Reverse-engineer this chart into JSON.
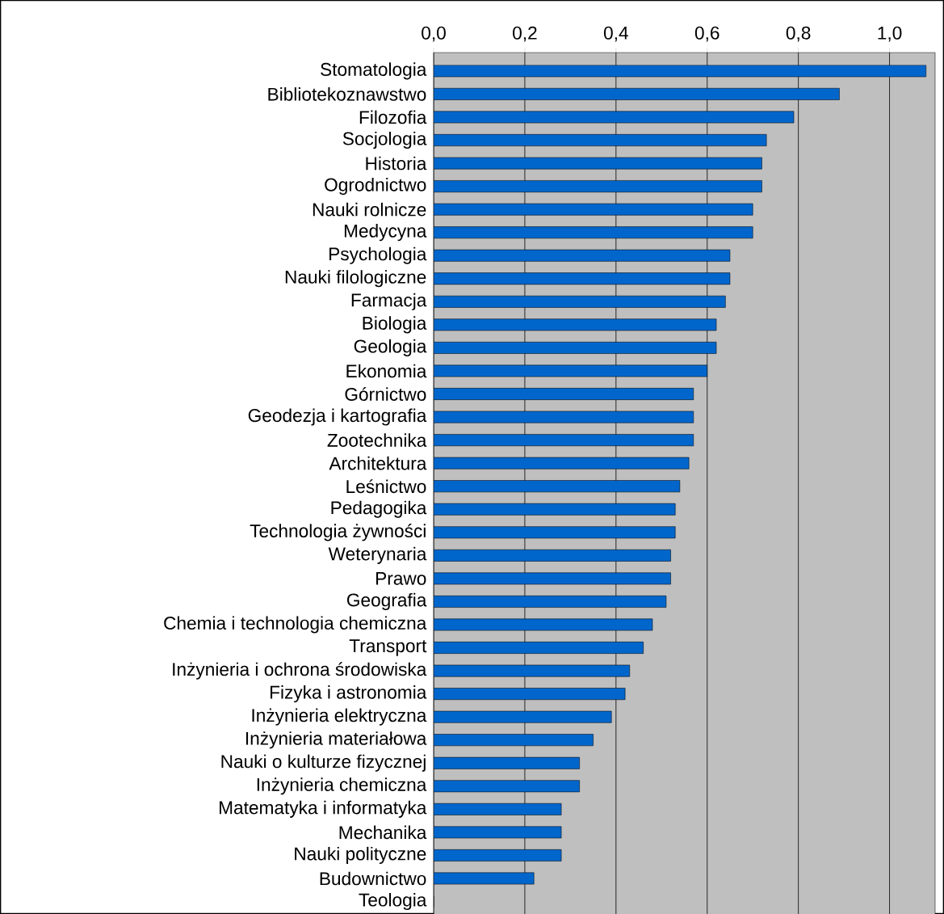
{
  "chart_data": {
    "type": "bar",
    "orientation": "horizontal",
    "categories": [
      "Stomatologia",
      "Bibliotekoznawstwo",
      "Filozofia",
      "Socjologia",
      "Historia",
      "Ogrodnictwo",
      "Nauki rolnicze",
      "Medycyna",
      "Psychologia",
      "Nauki filologiczne",
      "Farmacja",
      "Biologia",
      "Geologia",
      "Ekonomia",
      "Górnictwo",
      "Geodezja i kartografia",
      "Zootechnika",
      "Architektura",
      "Leśnictwo",
      "Pedagogika",
      "Technologia żywności",
      "Weterynaria",
      "Prawo",
      "Geografia",
      "Chemia i technologia chemiczna",
      "Transport",
      "Inżynieria i ochrona środowiska",
      "Fizyka i astronomia",
      "Inżynieria elektryczna",
      "Inżynieria materiałowa",
      "Nauki o kulturze fizycznej",
      "Inżynieria chemiczna",
      "Matematyka i informatyka",
      "Mechanika",
      "Nauki polityczne",
      "Budownictwo",
      "Teologia"
    ],
    "values": [
      1.08,
      0.89,
      0.79,
      0.73,
      0.72,
      0.72,
      0.7,
      0.7,
      0.65,
      0.65,
      0.64,
      0.62,
      0.62,
      0.6,
      0.57,
      0.57,
      0.57,
      0.56,
      0.54,
      0.53,
      0.53,
      0.52,
      0.52,
      0.51,
      0.48,
      0.46,
      0.43,
      0.42,
      0.39,
      0.35,
      0.32,
      0.32,
      0.28,
      0.28,
      0.28,
      0.22,
      0
    ],
    "color": "#0066cc",
    "xlim": [
      0,
      1.1
    ],
    "xticks": [
      {
        "value": 0,
        "label": "0,0"
      },
      {
        "value": 0.2,
        "label": "0,2"
      },
      {
        "value": 0.4,
        "label": "0,4"
      },
      {
        "value": 0.6,
        "label": "0,6"
      },
      {
        "value": 0.8,
        "label": "0,8"
      },
      {
        "value": 1.0,
        "label": "1,0"
      }
    ],
    "grid": "x"
  }
}
